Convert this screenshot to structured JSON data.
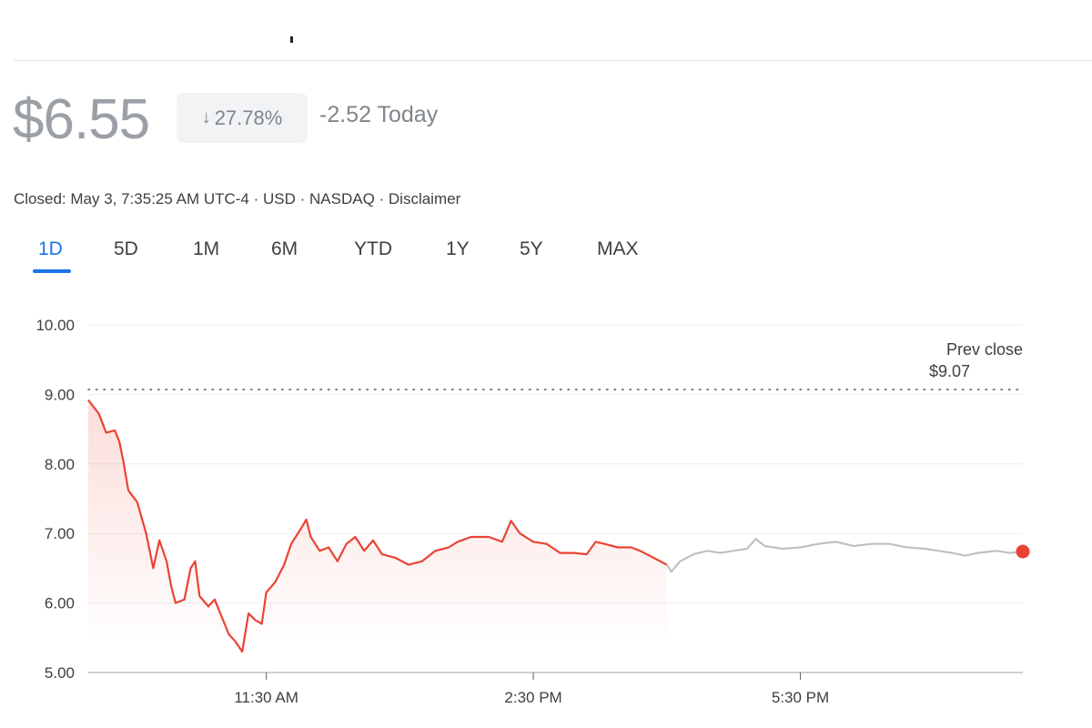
{
  "quote": {
    "price": "$6.55",
    "change_percent": "27.78%",
    "change_today": "-2.52 Today",
    "info": "Closed: May 3, 7:35:25 AM UTC-4 · USD · NASDAQ · Disclaimer"
  },
  "tabs": [
    {
      "label": "1D",
      "active": true
    },
    {
      "label": "5D",
      "active": false
    },
    {
      "label": "1M",
      "active": false
    },
    {
      "label": "6M",
      "active": false
    },
    {
      "label": "YTD",
      "active": false
    },
    {
      "label": "1Y",
      "active": false
    },
    {
      "label": "5Y",
      "active": false
    },
    {
      "label": "MAX",
      "active": false
    }
  ],
  "chart_data": {
    "type": "line",
    "title": "",
    "xlabel": "",
    "ylabel": "",
    "ylim": [
      5.0,
      10.0
    ],
    "y_ticks": [
      "10.00",
      "9.00",
      "8.00",
      "7.00",
      "6.00",
      "5.00"
    ],
    "x_range_hours": [
      9.5,
      20.0
    ],
    "x_ticks": [
      {
        "hour": 11.5,
        "label": "11:30 AM"
      },
      {
        "hour": 14.5,
        "label": "2:30 PM"
      },
      {
        "hour": 17.5,
        "label": "5:30 PM"
      }
    ],
    "prev_close": {
      "value": 9.07,
      "label_line1": "Prev close",
      "label_line2": "$9.07"
    },
    "colors": {
      "regular": "#ea4335",
      "after_hours": "#bdc1c6",
      "grid": "#eeeeee",
      "prev_close": "#5f6368"
    },
    "series": [
      {
        "segment": "regular",
        "points": [
          [
            9.5,
            8.92
          ],
          [
            9.62,
            8.72
          ],
          [
            9.7,
            8.45
          ],
          [
            9.8,
            8.48
          ],
          [
            9.85,
            8.32
          ],
          [
            9.9,
            8.0
          ],
          [
            9.95,
            7.62
          ],
          [
            10.05,
            7.45
          ],
          [
            10.15,
            7.0
          ],
          [
            10.23,
            6.5
          ],
          [
            10.3,
            6.9
          ],
          [
            10.38,
            6.6
          ],
          [
            10.43,
            6.25
          ],
          [
            10.48,
            6.0
          ],
          [
            10.58,
            6.05
          ],
          [
            10.65,
            6.5
          ],
          [
            10.7,
            6.6
          ],
          [
            10.75,
            6.1
          ],
          [
            10.85,
            5.95
          ],
          [
            10.92,
            6.05
          ],
          [
            11.0,
            5.8
          ],
          [
            11.08,
            5.55
          ],
          [
            11.15,
            5.45
          ],
          [
            11.23,
            5.3
          ],
          [
            11.3,
            5.85
          ],
          [
            11.38,
            5.75
          ],
          [
            11.45,
            5.7
          ],
          [
            11.5,
            6.15
          ],
          [
            11.6,
            6.3
          ],
          [
            11.7,
            6.55
          ],
          [
            11.78,
            6.85
          ],
          [
            11.88,
            7.05
          ],
          [
            11.95,
            7.2
          ],
          [
            12.0,
            6.95
          ],
          [
            12.1,
            6.75
          ],
          [
            12.2,
            6.8
          ],
          [
            12.3,
            6.6
          ],
          [
            12.4,
            6.85
          ],
          [
            12.5,
            6.95
          ],
          [
            12.6,
            6.75
          ],
          [
            12.7,
            6.9
          ],
          [
            12.8,
            6.7
          ],
          [
            12.95,
            6.65
          ],
          [
            13.1,
            6.55
          ],
          [
            13.25,
            6.6
          ],
          [
            13.4,
            6.75
          ],
          [
            13.55,
            6.8
          ],
          [
            13.65,
            6.88
          ],
          [
            13.8,
            6.95
          ],
          [
            14.0,
            6.95
          ],
          [
            14.15,
            6.88
          ],
          [
            14.25,
            7.18
          ],
          [
            14.35,
            7.0
          ],
          [
            14.5,
            6.88
          ],
          [
            14.65,
            6.85
          ],
          [
            14.8,
            6.72
          ],
          [
            14.95,
            6.72
          ],
          [
            15.1,
            6.7
          ],
          [
            15.2,
            6.88
          ],
          [
            15.3,
            6.85
          ],
          [
            15.45,
            6.8
          ],
          [
            15.6,
            6.8
          ],
          [
            15.7,
            6.75
          ],
          [
            15.85,
            6.65
          ],
          [
            16.0,
            6.55
          ]
        ]
      },
      {
        "segment": "after_hours",
        "points": [
          [
            16.0,
            6.55
          ],
          [
            16.05,
            6.45
          ],
          [
            16.15,
            6.6
          ],
          [
            16.3,
            6.7
          ],
          [
            16.45,
            6.75
          ],
          [
            16.6,
            6.72
          ],
          [
            16.75,
            6.75
          ],
          [
            16.9,
            6.78
          ],
          [
            17.0,
            6.92
          ],
          [
            17.1,
            6.82
          ],
          [
            17.3,
            6.78
          ],
          [
            17.5,
            6.8
          ],
          [
            17.7,
            6.85
          ],
          [
            17.9,
            6.88
          ],
          [
            18.1,
            6.82
          ],
          [
            18.3,
            6.85
          ],
          [
            18.5,
            6.85
          ],
          [
            18.7,
            6.8
          ],
          [
            18.9,
            6.78
          ],
          [
            19.05,
            6.75
          ],
          [
            19.2,
            6.72
          ],
          [
            19.35,
            6.68
          ],
          [
            19.5,
            6.72
          ],
          [
            19.7,
            6.75
          ],
          [
            19.85,
            6.72
          ],
          [
            20.0,
            6.74
          ]
        ]
      }
    ]
  }
}
